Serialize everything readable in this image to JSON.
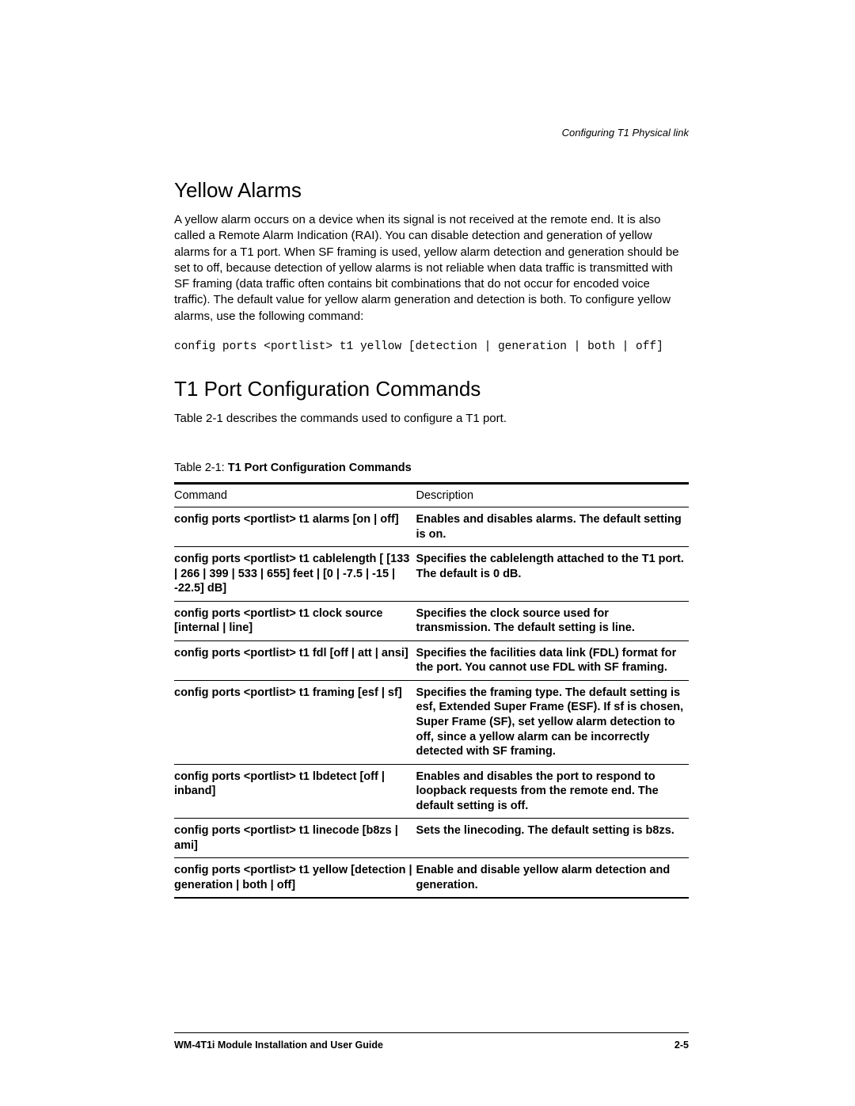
{
  "running_head": "Configuring T1 Physical link",
  "section1": {
    "heading": "Yellow Alarms",
    "paragraph": "A yellow alarm occurs on a device when its signal is not received at the remote end. It is also called a Remote Alarm Indication (RAI). You can disable detection and generation of yellow alarms for a T1 port. When SF framing is used, yellow alarm detection and generation should be set to off, because detection of yellow alarms is not reliable when data traffic is transmitted with SF framing (data traffic often contains bit combinations that do not occur for encoded voice traffic). The default value for yellow alarm generation and detection is both. To configure yellow alarms, use the following command:",
    "command": "config ports <portlist> t1 yellow [detection | generation | both | off]"
  },
  "section2": {
    "heading": "T1 Port Configuration Commands",
    "intro": "Table 2-1 describes the commands used to configure a T1 port."
  },
  "table": {
    "caption_label": "Table 2-1:  ",
    "caption_title": "T1 Port Configuration Commands",
    "headers": {
      "col1": "Command",
      "col2": "Description"
    },
    "rows": [
      {
        "cmd": "config ports <portlist> t1 alarms [on | off]",
        "desc": "Enables and disables alarms. The default setting is on."
      },
      {
        "cmd": "config ports <portlist> t1 cablelength [ [133 | 266 | 399 | 533 | 655] feet | [0 | -7.5 | -15 | -22.5] dB]",
        "desc": "Specifies the cablelength attached to the T1 port. The default is 0 dB."
      },
      {
        "cmd": "config ports <portlist> t1 clock source [internal | line]",
        "desc": "Specifies the clock source used for transmission. The default setting is line."
      },
      {
        "cmd": "config ports <portlist> t1 fdl [off | att | ansi]",
        "desc": "Specifies the facilities data link (FDL) format for the port. You cannot use FDL with SF framing."
      },
      {
        "cmd": "config ports <portlist> t1 framing [esf | sf]",
        "desc": "Specifies the framing type. The default setting is esf, Extended Super Frame (ESF). If sf is chosen, Super Frame (SF), set yellow alarm detection to off, since a yellow alarm can be incorrectly detected with SF framing."
      },
      {
        "cmd": "config ports <portlist> t1 lbdetect [off | inband]",
        "desc": "Enables and disables the port to respond to loopback requests from the remote end. The default setting is off."
      },
      {
        "cmd": "config ports <portlist> t1 linecode [b8zs | ami]",
        "desc": "Sets the linecoding. The default setting is b8zs."
      },
      {
        "cmd": "config ports <portlist> t1 yellow [detection | generation | both | off]",
        "desc": "Enable and disable yellow alarm detection and generation."
      }
    ]
  },
  "footer": {
    "left": "WM-4T1i Module Installation and User Guide",
    "right": "2-5"
  }
}
